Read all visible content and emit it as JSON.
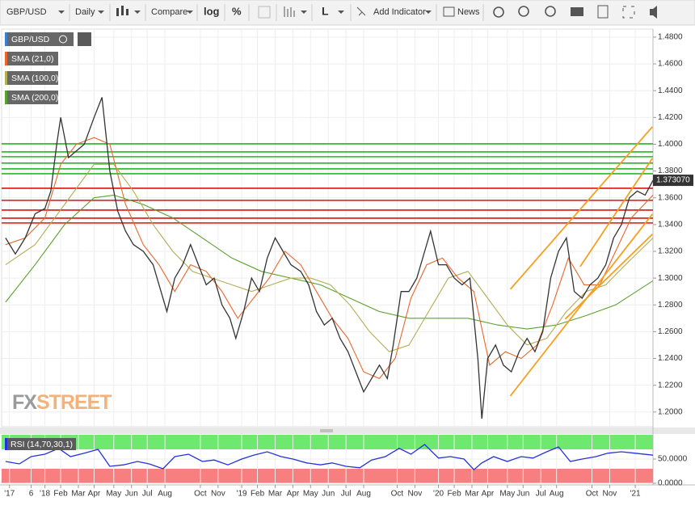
{
  "toolbar": {
    "symbol": "GBP/USD",
    "interval": "Daily",
    "compare": "Compare",
    "log": "log",
    "percent": "%",
    "line": "L",
    "add_indicator": "Add Indicator",
    "news": "News"
  },
  "watermark": {
    "fx": "FX",
    "street": "STREET"
  },
  "chart_data": [
    {
      "type": "line",
      "legend": "upper left",
      "grid": true,
      "xlim": [
        2017.78,
        2021.09
      ],
      "ylim": [
        1.189,
        1.486
      ],
      "yticks": [
        {
          "value": 1.2,
          "label": "1.2000"
        },
        {
          "value": 1.22,
          "label": "1.2200"
        },
        {
          "value": 1.24,
          "label": "1.2400"
        },
        {
          "value": 1.26,
          "label": "1.2600"
        },
        {
          "value": 1.28,
          "label": "1.2800"
        },
        {
          "value": 1.3,
          "label": "1.3000"
        },
        {
          "value": 1.32,
          "label": "1.3200"
        },
        {
          "value": 1.34,
          "label": "1.3400"
        },
        {
          "value": 1.36,
          "label": "1.3600"
        },
        {
          "value": 1.38,
          "label": "1.3800"
        },
        {
          "value": 1.4,
          "label": "1.4000"
        },
        {
          "value": 1.42,
          "label": "1.4200"
        },
        {
          "value": 1.44,
          "label": "1.4400"
        },
        {
          "value": 1.46,
          "label": "1.4600"
        },
        {
          "value": 1.48,
          "label": "1.4800"
        }
      ],
      "last_value": {
        "value": 1.37307,
        "label": "1.373070"
      },
      "hlines": [
        {
          "value": 1.4003,
          "color": "#22b822"
        },
        {
          "value": 1.3943,
          "color": "#22b822"
        },
        {
          "value": 1.3907,
          "color": "#22b822"
        },
        {
          "value": 1.3859,
          "color": "#22b822"
        },
        {
          "value": 1.3816,
          "color": "#22b822"
        },
        {
          "value": 1.378,
          "color": "#22b822"
        },
        {
          "value": 1.3671,
          "color": "#dd1111"
        },
        {
          "value": 1.3581,
          "color": "#dd1111"
        },
        {
          "value": 1.3508,
          "color": "#dd1111"
        },
        {
          "value": 1.3448,
          "color": "#dd1111"
        },
        {
          "value": 1.3412,
          "color": "#dd1111"
        }
      ],
      "trendlines": [
        {
          "x": [
            2020.365,
            2021.087
          ],
          "values": [
            1.2917,
            1.413
          ],
          "color": "#f5a020"
        },
        {
          "x": [
            2020.72,
            2021.087
          ],
          "values": [
            1.3086,
            1.3895
          ],
          "color": "#f5a020"
        },
        {
          "x": [
            2020.365,
            2021.087
          ],
          "values": [
            1.212,
            1.3478
          ],
          "color": "#f5a020"
        },
        {
          "x": [
            2020.644,
            2021.087
          ],
          "values": [
            1.2694,
            1.3328
          ],
          "color": "#f5a020"
        }
      ],
      "series": [
        {
          "name": "GBP/USD",
          "color": "#333333",
          "x": [
            2017.8,
            2017.85,
            2017.9,
            2017.95,
            2018.0,
            2018.03,
            2018.06,
            2018.08,
            2018.12,
            2018.16,
            2018.2,
            2018.25,
            2018.29,
            2018.33,
            2018.37,
            2018.41,
            2018.45,
            2018.5,
            2018.55,
            2018.58,
            2018.62,
            2018.66,
            2018.7,
            2018.74,
            2018.78,
            2018.82,
            2018.86,
            2018.9,
            2018.94,
            2018.97,
            2019.01,
            2019.05,
            2019.09,
            2019.13,
            2019.17,
            2019.21,
            2019.25,
            2019.3,
            2019.34,
            2019.38,
            2019.42,
            2019.46,
            2019.5,
            2019.54,
            2019.58,
            2019.62,
            2019.66,
            2019.7,
            2019.74,
            2019.77,
            2019.81,
            2019.85,
            2019.89,
            2019.93,
            2019.96,
            2020.0,
            2020.04,
            2020.08,
            2020.12,
            2020.16,
            2020.2,
            2020.22,
            2020.25,
            2020.29,
            2020.33,
            2020.37,
            2020.41,
            2020.45,
            2020.49,
            2020.53,
            2020.57,
            2020.61,
            2020.65,
            2020.69,
            2020.73,
            2020.77,
            2020.81,
            2020.85,
            2020.89,
            2020.93,
            2020.97,
            2021.01,
            2021.05,
            2021.09
          ],
          "values": [
            1.33,
            1.318,
            1.33,
            1.348,
            1.352,
            1.365,
            1.4,
            1.42,
            1.39,
            1.395,
            1.4,
            1.42,
            1.435,
            1.38,
            1.35,
            1.335,
            1.325,
            1.32,
            1.31,
            1.295,
            1.275,
            1.3,
            1.31,
            1.325,
            1.31,
            1.295,
            1.3,
            1.28,
            1.27,
            1.255,
            1.275,
            1.3,
            1.29,
            1.315,
            1.33,
            1.32,
            1.31,
            1.305,
            1.295,
            1.275,
            1.265,
            1.27,
            1.255,
            1.245,
            1.23,
            1.215,
            1.225,
            1.235,
            1.225,
            1.25,
            1.29,
            1.29,
            1.3,
            1.32,
            1.335,
            1.31,
            1.31,
            1.3,
            1.295,
            1.3,
            1.24,
            1.195,
            1.24,
            1.25,
            1.235,
            1.23,
            1.245,
            1.255,
            1.245,
            1.26,
            1.3,
            1.32,
            1.33,
            1.29,
            1.285,
            1.295,
            1.3,
            1.31,
            1.33,
            1.34,
            1.36,
            1.365,
            1.362,
            1.373
          ]
        },
        {
          "name": "SMA (21,0)",
          "color": "#e8672c",
          "x": [
            2017.8,
            2017.9,
            2018.0,
            2018.08,
            2018.16,
            2018.25,
            2018.33,
            2018.41,
            2018.5,
            2018.58,
            2018.66,
            2018.74,
            2018.82,
            2018.9,
            2018.98,
            2019.06,
            2019.14,
            2019.22,
            2019.3,
            2019.38,
            2019.46,
            2019.54,
            2019.62,
            2019.7,
            2019.78,
            2019.86,
            2019.94,
            2020.02,
            2020.1,
            2020.18,
            2020.26,
            2020.34,
            2020.42,
            2020.5,
            2020.58,
            2020.66,
            2020.74,
            2020.82,
            2020.9,
            2020.98,
            2021.09
          ],
          "values": [
            1.325,
            1.33,
            1.345,
            1.385,
            1.4,
            1.405,
            1.4,
            1.355,
            1.325,
            1.31,
            1.29,
            1.31,
            1.305,
            1.29,
            1.27,
            1.285,
            1.3,
            1.32,
            1.31,
            1.29,
            1.27,
            1.255,
            1.23,
            1.225,
            1.24,
            1.285,
            1.31,
            1.315,
            1.3,
            1.29,
            1.235,
            1.245,
            1.24,
            1.25,
            1.28,
            1.315,
            1.295,
            1.295,
            1.32,
            1.345,
            1.362
          ]
        },
        {
          "name": "SMA (100,0)",
          "color": "#b3ad55",
          "x": [
            2017.8,
            2017.95,
            2018.1,
            2018.25,
            2018.35,
            2018.45,
            2018.55,
            2018.65,
            2018.75,
            2018.85,
            2018.95,
            2019.05,
            2019.15,
            2019.25,
            2019.35,
            2019.45,
            2019.55,
            2019.65,
            2019.75,
            2019.85,
            2019.95,
            2020.05,
            2020.15,
            2020.25,
            2020.35,
            2020.45,
            2020.55,
            2020.65,
            2020.75,
            2020.85,
            2020.95,
            2021.09
          ],
          "values": [
            1.31,
            1.325,
            1.355,
            1.385,
            1.385,
            1.365,
            1.34,
            1.32,
            1.305,
            1.3,
            1.295,
            1.29,
            1.295,
            1.3,
            1.3,
            1.295,
            1.28,
            1.26,
            1.245,
            1.25,
            1.275,
            1.3,
            1.305,
            1.285,
            1.265,
            1.25,
            1.255,
            1.275,
            1.29,
            1.295,
            1.31,
            1.33
          ]
        },
        {
          "name": "SMA (200,0)",
          "color": "#5aa02c",
          "x": [
            2017.8,
            2017.95,
            2018.1,
            2018.25,
            2018.35,
            2018.5,
            2018.65,
            2018.8,
            2018.95,
            2019.1,
            2019.25,
            2019.4,
            2019.55,
            2019.7,
            2019.85,
            2020.0,
            2020.15,
            2020.3,
            2020.45,
            2020.6,
            2020.75,
            2020.9,
            2021.09
          ],
          "values": [
            1.282,
            1.31,
            1.34,
            1.36,
            1.362,
            1.355,
            1.345,
            1.33,
            1.315,
            1.305,
            1.3,
            1.295,
            1.285,
            1.275,
            1.27,
            1.27,
            1.27,
            1.265,
            1.262,
            1.265,
            1.272,
            1.28,
            1.298
          ]
        }
      ]
    },
    {
      "type": "line",
      "grid": true,
      "xlim": [
        2017.78,
        2021.09
      ],
      "ylim": [
        0,
        100
      ],
      "yticks": [
        {
          "value": 50,
          "label": "50.0000"
        },
        {
          "value": 0,
          "label": "0.0000"
        }
      ],
      "bands": [
        {
          "from": 70,
          "to": 100,
          "color": "#6ee86e"
        },
        {
          "from": 0,
          "to": 30,
          "color": "#f77f7f"
        }
      ],
      "xticks": [
        {
          "value": 2017.82,
          "label": "'17"
        },
        {
          "value": 2017.93,
          "label": "6"
        },
        {
          "value": 2018.0,
          "label": "'18"
        },
        {
          "value": 2018.08,
          "label": "Feb"
        },
        {
          "value": 2018.17,
          "label": "Mar"
        },
        {
          "value": 2018.25,
          "label": "Apr"
        },
        {
          "value": 2018.35,
          "label": "May"
        },
        {
          "value": 2018.44,
          "label": "Jun"
        },
        {
          "value": 2018.52,
          "label": "Jul"
        },
        {
          "value": 2018.61,
          "label": "Aug"
        },
        {
          "value": 2018.79,
          "label": "Oct"
        },
        {
          "value": 2018.88,
          "label": "Nov"
        },
        {
          "value": 2019.0,
          "label": "'19"
        },
        {
          "value": 2019.08,
          "label": "Feb"
        },
        {
          "value": 2019.17,
          "label": "Mar"
        },
        {
          "value": 2019.26,
          "label": "Apr"
        },
        {
          "value": 2019.35,
          "label": "May"
        },
        {
          "value": 2019.44,
          "label": "Jun"
        },
        {
          "value": 2019.53,
          "label": "Jul"
        },
        {
          "value": 2019.62,
          "label": "Aug"
        },
        {
          "value": 2019.79,
          "label": "Oct"
        },
        {
          "value": 2019.88,
          "label": "Nov"
        },
        {
          "value": 2020.0,
          "label": "'20"
        },
        {
          "value": 2020.08,
          "label": "Feb"
        },
        {
          "value": 2020.17,
          "label": "Mar"
        },
        {
          "value": 2020.25,
          "label": "Apr"
        },
        {
          "value": 2020.35,
          "label": "May"
        },
        {
          "value": 2020.43,
          "label": "Jun"
        },
        {
          "value": 2020.52,
          "label": "Jul"
        },
        {
          "value": 2020.6,
          "label": "Aug"
        },
        {
          "value": 2020.78,
          "label": "Oct"
        },
        {
          "value": 2020.87,
          "label": "Nov"
        },
        {
          "value": 2021.0,
          "label": "'21"
        }
      ],
      "series": [
        {
          "name": "RSI (14,70,30,1)",
          "color": "#2233dd",
          "x": [
            2017.8,
            2017.87,
            2017.93,
            2018.0,
            2018.07,
            2018.13,
            2018.2,
            2018.27,
            2018.33,
            2018.4,
            2018.47,
            2018.53,
            2018.6,
            2018.66,
            2018.73,
            2018.8,
            2018.86,
            2018.93,
            2019.0,
            2019.06,
            2019.13,
            2019.2,
            2019.26,
            2019.33,
            2019.4,
            2019.46,
            2019.53,
            2019.6,
            2019.66,
            2019.73,
            2019.8,
            2019.86,
            2019.93,
            2020.0,
            2020.06,
            2020.13,
            2020.18,
            2020.22,
            2020.28,
            2020.35,
            2020.42,
            2020.48,
            2020.55,
            2020.61,
            2020.67,
            2020.73,
            2020.8,
            2020.86,
            2020.93,
            2021.0,
            2021.09
          ],
          "values": [
            45,
            40,
            55,
            60,
            72,
            55,
            62,
            70,
            35,
            38,
            45,
            40,
            30,
            55,
            60,
            45,
            48,
            38,
            50,
            58,
            65,
            55,
            50,
            42,
            38,
            42,
            35,
            32,
            48,
            55,
            72,
            60,
            80,
            52,
            55,
            50,
            28,
            42,
            55,
            45,
            55,
            52,
            65,
            75,
            45,
            50,
            55,
            62,
            65,
            62,
            58
          ]
        }
      ]
    }
  ]
}
